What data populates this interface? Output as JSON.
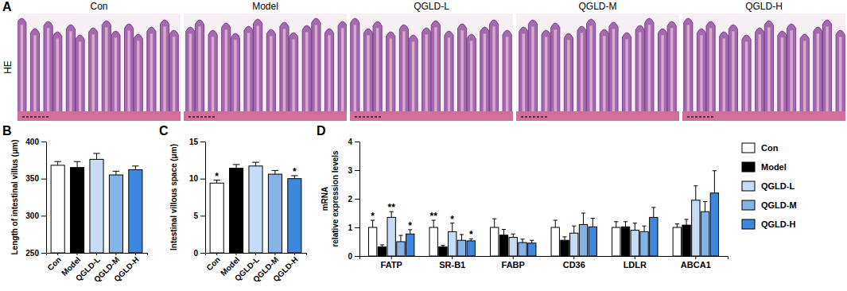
{
  "image_panel": {
    "panel_label": "A",
    "titles": [
      "Con",
      "Model",
      "QGLD-L",
      "QGLD-M",
      "QGLD-H"
    ],
    "stain": "HE"
  },
  "chart_data": [
    {
      "type": "bar",
      "panel_label": "B",
      "ylabel": "Length of intestinal villus (μm)",
      "categories": [
        "Con",
        "Model",
        "QGLD-L",
        "QGLD-M",
        "QGLD-H"
      ],
      "values": [
        368,
        365,
        376,
        355,
        362
      ],
      "error": [
        5,
        8,
        8,
        5,
        5
      ],
      "colors": [
        "#ffffff",
        "#000000",
        "#c5dcf4",
        "#86b3e6",
        "#3d87dd"
      ],
      "ylim": [
        250,
        400
      ],
      "yticks": [
        250,
        300,
        350,
        400
      ]
    },
    {
      "type": "bar",
      "panel_label": "C",
      "ylabel": "Intestinal villous space (μm)",
      "categories": [
        "Con",
        "Model",
        "QGLD-L",
        "QGLD-M",
        "QGLD-H"
      ],
      "values": [
        9.4,
        11.4,
        11.7,
        10.6,
        10.0
      ],
      "error": [
        0.4,
        0.5,
        0.5,
        0.5,
        0.4
      ],
      "annotations": [
        "*",
        null,
        null,
        null,
        "*"
      ],
      "colors": [
        "#ffffff",
        "#000000",
        "#c5dcf4",
        "#86b3e6",
        "#3d87dd"
      ],
      "ylim": [
        0,
        15
      ],
      "yticks": [
        0,
        5,
        10,
        15
      ]
    },
    {
      "type": "bar",
      "panel_label": "D",
      "ylabel": [
        "mRNA",
        "relative expression levels"
      ],
      "categories": [
        "FATP",
        "SR-B1",
        "FABP",
        "CD36",
        "LDLR",
        "ABCA1"
      ],
      "legend": "right",
      "ylim": [
        0,
        4
      ],
      "yticks": [
        0,
        1,
        2,
        3,
        4
      ],
      "series": [
        {
          "name": "Con",
          "color": "#ffffff",
          "values": [
            1.0,
            1.0,
            1.0,
            1.0,
            1.0,
            1.0
          ],
          "error": [
            0.25,
            0.25,
            0.3,
            0.25,
            0.2,
            0.12
          ],
          "annotations": [
            "*",
            "**",
            null,
            null,
            null,
            null
          ]
        },
        {
          "name": "Model",
          "color": "#000000",
          "values": [
            0.32,
            0.32,
            0.73,
            0.55,
            1.02,
            1.08
          ],
          "error": [
            0.07,
            0.05,
            0.2,
            0.12,
            0.18,
            0.2
          ],
          "annotations": [
            null,
            null,
            null,
            null,
            null,
            null
          ]
        },
        {
          "name": "QGLD-L",
          "color": "#c5dcf4",
          "values": [
            1.35,
            0.85,
            0.65,
            0.8,
            0.9,
            1.95
          ],
          "error": [
            0.2,
            0.3,
            0.12,
            0.25,
            0.25,
            0.5
          ],
          "annotations": [
            "**",
            "*",
            null,
            null,
            null,
            null
          ]
        },
        {
          "name": "QGLD-M",
          "color": "#86b3e6",
          "values": [
            0.5,
            0.55,
            0.47,
            1.1,
            0.85,
            1.55
          ],
          "error": [
            0.22,
            0.2,
            0.12,
            0.4,
            0.2,
            0.35
          ],
          "annotations": [
            null,
            null,
            null,
            null,
            null,
            null
          ]
        },
        {
          "name": "QGLD-H",
          "color": "#3d87dd",
          "values": [
            0.77,
            0.53,
            0.45,
            1.02,
            1.35,
            2.2
          ],
          "error": [
            0.15,
            0.07,
            0.1,
            0.3,
            0.35,
            0.78
          ],
          "annotations": [
            "*",
            "*",
            null,
            null,
            null,
            null
          ]
        }
      ]
    }
  ]
}
